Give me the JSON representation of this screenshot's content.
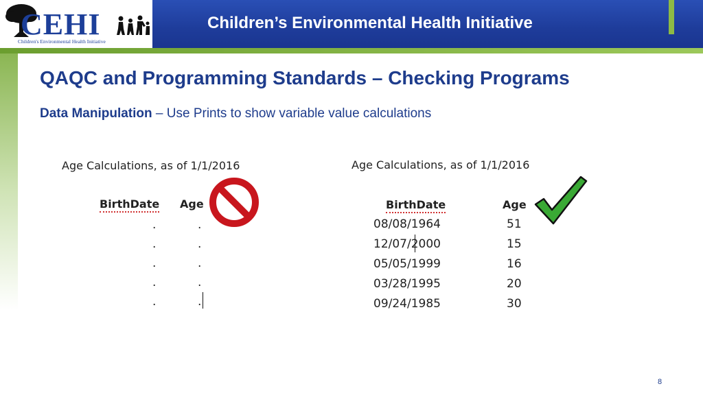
{
  "header": {
    "logo_text": "CEHI",
    "logo_subtitle": "Children's Environmental Health Initiative",
    "title": "Children’s Environmental Health Initiative"
  },
  "slide": {
    "title": "QAQC and Programming Standards – Checking Programs",
    "subtitle_bold": "Data Manipulation",
    "subtitle_rest": " – Use Prints to show variable value calculations",
    "page_number": "8"
  },
  "left_table": {
    "title": "Age Calculations, as of 1/1/2016",
    "headers": [
      "BirthDate",
      "Age"
    ],
    "rows": [
      [
        ".",
        "."
      ],
      [
        ".",
        "."
      ],
      [
        ".",
        "."
      ],
      [
        ".",
        "."
      ],
      [
        ".",
        "."
      ]
    ],
    "icon": "prohibited-icon"
  },
  "right_table": {
    "title": "Age Calculations, as of 1/1/2016",
    "headers": [
      "BirthDate",
      "Age"
    ],
    "rows": [
      [
        "08/08/1964",
        "51"
      ],
      [
        "12/07/2000",
        "15"
      ],
      [
        "05/05/1999",
        "16"
      ],
      [
        "03/28/1995",
        "20"
      ],
      [
        "09/24/1985",
        "30"
      ]
    ],
    "icon": "checkmark-icon"
  },
  "colors": {
    "header_blue": "#1e3c9a",
    "accent_green": "#8dba45",
    "title_blue": "#1e3c8c",
    "prohibit_red": "#c8161d",
    "check_green": "#3aa935"
  }
}
